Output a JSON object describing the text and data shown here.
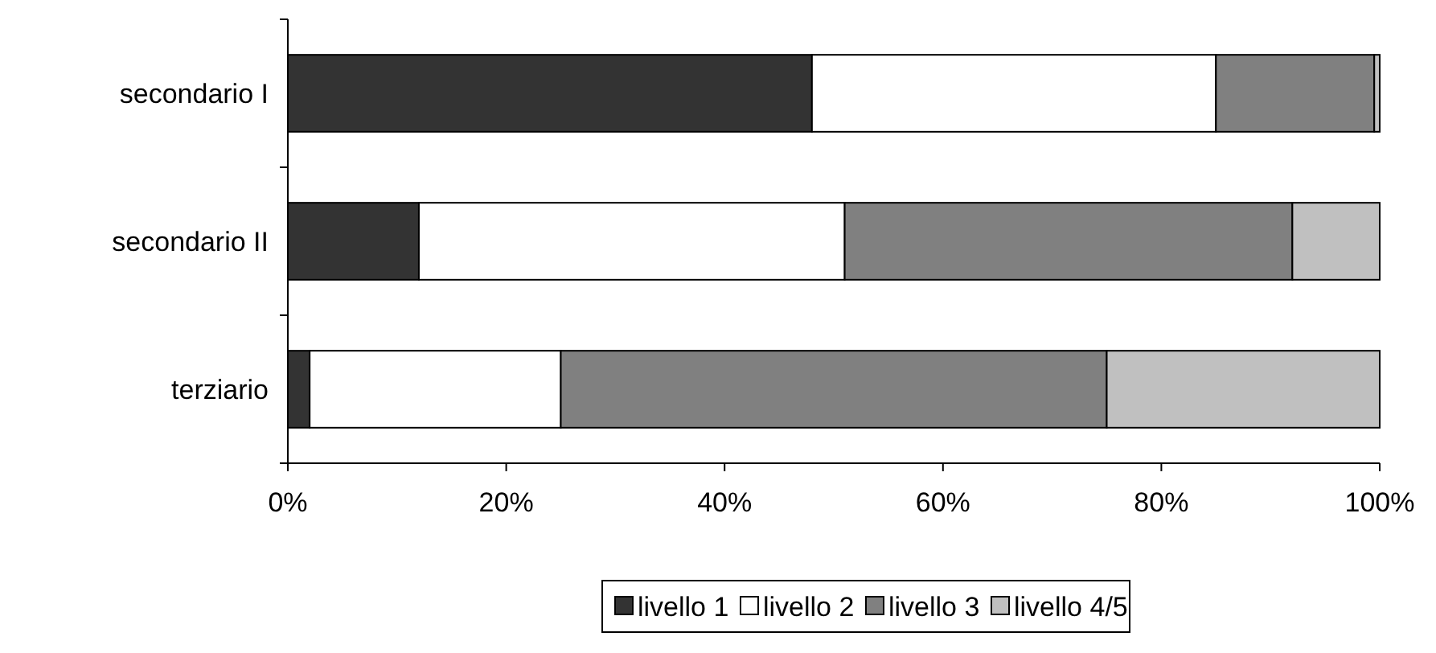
{
  "chart_data": {
    "type": "bar",
    "orientation": "horizontal",
    "stacked": true,
    "categories": [
      "secondario I",
      "secondario II",
      "terziario"
    ],
    "series": [
      {
        "name": "livello 1",
        "color": "#333333",
        "values": [
          48,
          12,
          2
        ]
      },
      {
        "name": "livello 2",
        "color": "#ffffff",
        "values": [
          37,
          39,
          23
        ]
      },
      {
        "name": "livello 3",
        "color": "#808080",
        "values": [
          14.5,
          41,
          50
        ]
      },
      {
        "name": "livello 4/5",
        "color": "#c0c0c0",
        "values": [
          0.5,
          8,
          25
        ]
      }
    ],
    "xlim": [
      0,
      100
    ],
    "xticks": [
      {
        "value": 0,
        "label": "0%"
      },
      {
        "value": 20,
        "label": "20%"
      },
      {
        "value": 40,
        "label": "40%"
      },
      {
        "value": 60,
        "label": "60%"
      },
      {
        "value": 80,
        "label": "80%"
      },
      {
        "value": 100,
        "label": "100%"
      }
    ],
    "grid": false,
    "legend": "bottom"
  }
}
